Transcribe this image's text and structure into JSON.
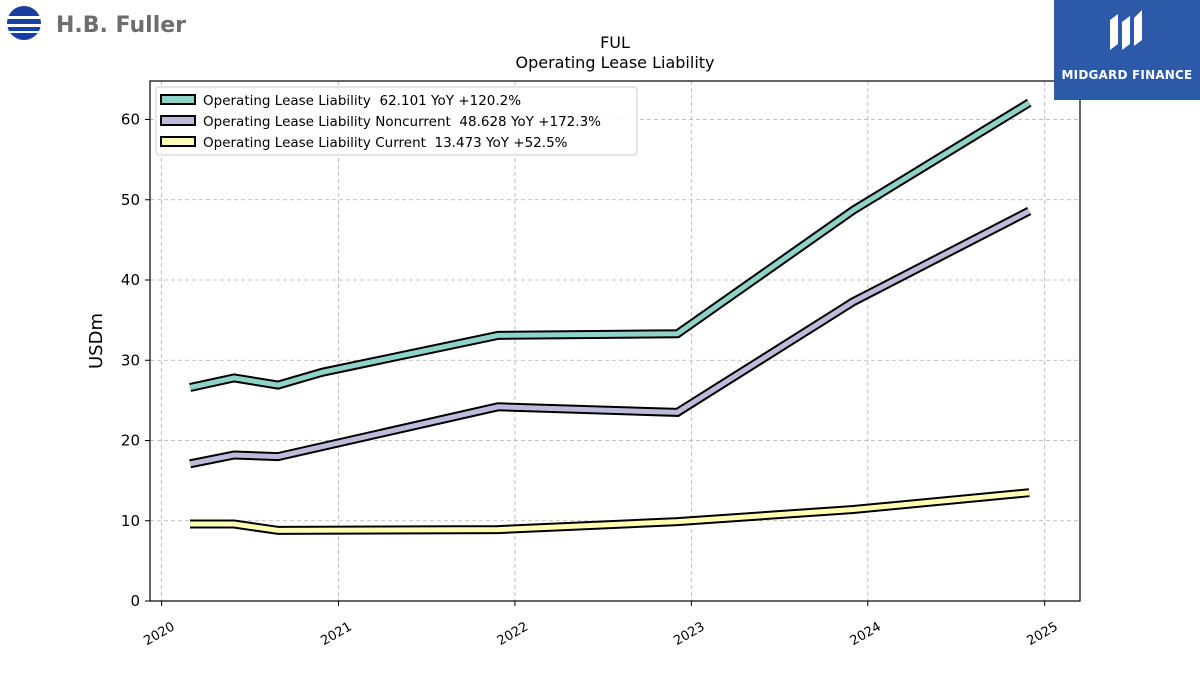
{
  "logos": {
    "left_text": "H.B. Fuller",
    "right_text": "MIDGARD FINANCE"
  },
  "chart_data": {
    "type": "line",
    "title": "FUL",
    "subtitle": "Operating Lease Liability",
    "xlabel": "",
    "ylabel": "USDm",
    "x_range": [
      "2019-12-08",
      "2025-03-15"
    ],
    "ylim": [
      0,
      64.8
    ],
    "x_ticks": [
      "2020",
      "2021",
      "2022",
      "2023",
      "2024",
      "2025"
    ],
    "y_ticks": [
      0,
      10,
      20,
      30,
      40,
      50,
      60
    ],
    "grid": true,
    "legend_position": "top-left",
    "series": [
      {
        "name": "Operating Lease Liability",
        "legend_label": "Operating Lease Liability  62.101 YoY +120.2%",
        "color": "#8dd3c7",
        "points": [
          [
            "2020-02-29",
            26.6
          ],
          [
            "2020-05-30",
            27.8
          ],
          [
            "2020-08-29",
            26.9
          ],
          [
            "2020-11-28",
            28.5
          ],
          [
            "2021-11-27",
            33.1
          ],
          [
            "2022-12-03",
            33.3
          ],
          [
            "2023-12-02",
            48.7
          ],
          [
            "2024-11-30",
            62.1
          ]
        ]
      },
      {
        "name": "Operating Lease Liability Noncurrent",
        "legend_label": "Operating Lease Liability Noncurrent  48.628 YoY +172.3%",
        "color": "#bebada",
        "points": [
          [
            "2020-02-29",
            17.1
          ],
          [
            "2020-05-30",
            18.2
          ],
          [
            "2020-08-29",
            18.0
          ],
          [
            "2021-11-27",
            24.2
          ],
          [
            "2022-12-03",
            23.5
          ],
          [
            "2023-12-02",
            37.3
          ],
          [
            "2024-11-30",
            48.6
          ]
        ]
      },
      {
        "name": "Operating Lease Liability Current",
        "legend_label": "Operating Lease Liability Current  13.473 YoY +52.5%",
        "color": "#ffffb3",
        "points": [
          [
            "2020-02-29",
            9.6
          ],
          [
            "2020-05-30",
            9.6
          ],
          [
            "2020-08-29",
            8.8
          ],
          [
            "2021-11-27",
            8.9
          ],
          [
            "2022-12-03",
            9.9
          ],
          [
            "2023-12-02",
            11.4
          ],
          [
            "2024-11-30",
            13.5
          ]
        ]
      }
    ]
  }
}
